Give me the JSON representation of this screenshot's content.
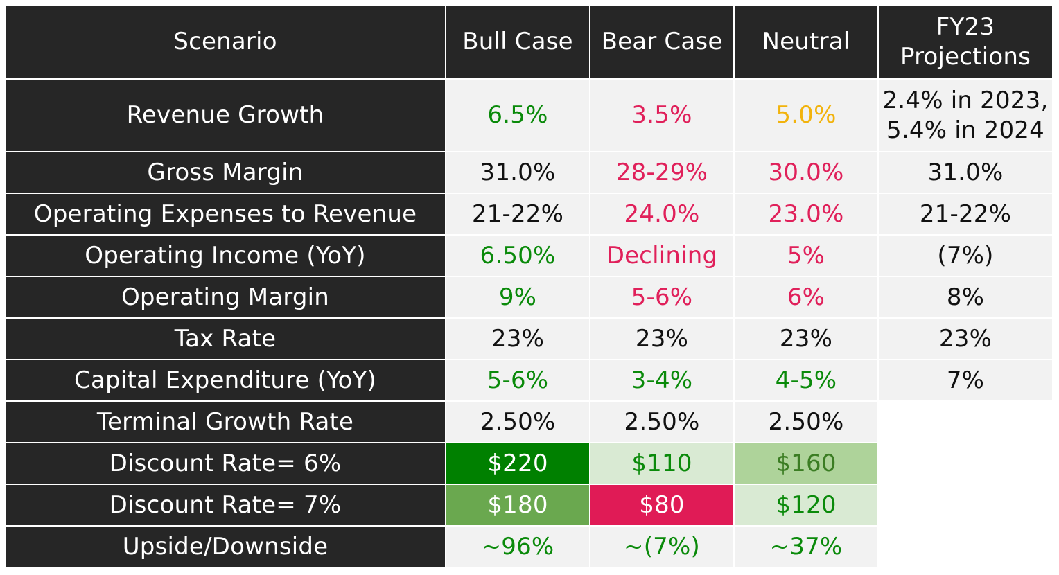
{
  "colors": {
    "dark_bg": "#262626",
    "light_bg": "#f2f2f2",
    "text_on_dark": "#ffffff",
    "black": "#111111",
    "green": "#0a8a0a",
    "red": "#e0205a",
    "yellow": "#f2b30d",
    "olive_text": "#3b7d23",
    "fill_dark_green": "#008000",
    "fill_mid_green": "#6aa84f",
    "fill_light_green": "#aed39a",
    "fill_pale_green": "#d9ead3",
    "fill_red": "#e01b56"
  },
  "header": [
    "Scenario",
    "Bull Case",
    "Bear Case",
    "Neutral",
    "FY23\nProjections"
  ],
  "rows": [
    {
      "label": "Revenue Growth",
      "cells": [
        {
          "text": "6.5%",
          "color": "green"
        },
        {
          "text": "3.5%",
          "color": "red"
        },
        {
          "text": "5.0%",
          "color": "yellow"
        },
        {
          "text": "2.4% in 2023,\n5.4% in 2024",
          "color": "black"
        }
      ]
    },
    {
      "label": "Gross Margin",
      "cells": [
        {
          "text": "31.0%",
          "color": "black"
        },
        {
          "text": "28-29%",
          "color": "red"
        },
        {
          "text": "30.0%",
          "color": "red"
        },
        {
          "text": "31.0%",
          "color": "black"
        }
      ]
    },
    {
      "label": "Operating Expenses to Revenue",
      "cells": [
        {
          "text": "21-22%",
          "color": "black"
        },
        {
          "text": "24.0%",
          "color": "red"
        },
        {
          "text": "23.0%",
          "color": "red"
        },
        {
          "text": "21-22%",
          "color": "black"
        }
      ]
    },
    {
      "label": "Operating Income (YoY)",
      "cells": [
        {
          "text": "6.50%",
          "color": "green"
        },
        {
          "text": "Declining",
          "color": "red"
        },
        {
          "text": "5%",
          "color": "red"
        },
        {
          "text": "(7%)",
          "color": "black"
        }
      ]
    },
    {
      "label": "Operating Margin",
      "cells": [
        {
          "text": "9%",
          "color": "green"
        },
        {
          "text": "5-6%",
          "color": "red"
        },
        {
          "text": "6%",
          "color": "red"
        },
        {
          "text": "8%",
          "color": "black"
        }
      ]
    },
    {
      "label": "Tax Rate",
      "cells": [
        {
          "text": "23%",
          "color": "black"
        },
        {
          "text": "23%",
          "color": "black"
        },
        {
          "text": "23%",
          "color": "black"
        },
        {
          "text": "23%",
          "color": "black"
        }
      ]
    },
    {
      "label": "Capital Expenditure (YoY)",
      "cells": [
        {
          "text": "5-6%",
          "color": "green"
        },
        {
          "text": "3-4%",
          "color": "green"
        },
        {
          "text": "4-5%",
          "color": "green"
        },
        {
          "text": "7%",
          "color": "black"
        }
      ]
    },
    {
      "label": "Terminal Growth Rate",
      "cells": [
        {
          "text": "2.50%",
          "color": "black"
        },
        {
          "text": "2.50%",
          "color": "black"
        },
        {
          "text": "2.50%",
          "color": "black"
        }
      ]
    },
    {
      "label": "Discount Rate= 6%",
      "cells": [
        {
          "text": "$220",
          "color": "white",
          "bg": "fill_dark_green"
        },
        {
          "text": "$110",
          "color": "green",
          "bg": "fill_pale_green"
        },
        {
          "text": "$160",
          "color": "olive_text",
          "bg": "fill_light_green"
        }
      ]
    },
    {
      "label": "Discount Rate= 7%",
      "cells": [
        {
          "text": "$180",
          "color": "white",
          "bg": "fill_mid_green"
        },
        {
          "text": "$80",
          "color": "white",
          "bg": "fill_red"
        },
        {
          "text": "$120",
          "color": "green",
          "bg": "fill_pale_green"
        }
      ]
    },
    {
      "label": "Upside/Downside",
      "cells": [
        {
          "text": "~96%",
          "color": "green"
        },
        {
          "text": "~(7%)",
          "color": "green"
        },
        {
          "text": "~37%",
          "color": "green"
        }
      ]
    }
  ]
}
